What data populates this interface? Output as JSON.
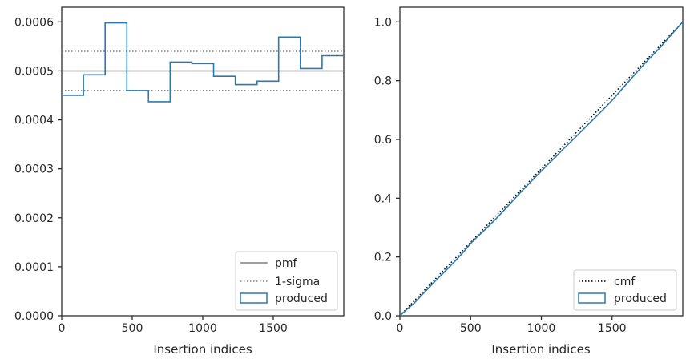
{
  "chart_data": [
    {
      "type": "histogram-step",
      "xlabel": "Insertion indices",
      "ylabel": "",
      "xlim": [
        0,
        2000
      ],
      "ylim": [
        0,
        0.00063
      ],
      "xticks": [
        0,
        500,
        1000,
        1500
      ],
      "xtick_labels": [
        "0",
        "500",
        "1000",
        "1500"
      ],
      "yticks": [
        0,
        0.0001,
        0.0002,
        0.0003,
        0.0004,
        0.0005,
        0.0006
      ],
      "ytick_labels": [
        "0.0000",
        "0.0001",
        "0.0002",
        "0.0003",
        "0.0004",
        "0.0005",
        "0.0006"
      ],
      "hlines": [
        {
          "name": "pmf",
          "y": 0.0005,
          "style": "solid",
          "color": "#808080"
        },
        {
          "name": "1-sigma",
          "y": 0.00054,
          "style": "dotted",
          "color": "#808080"
        },
        {
          "name": "1-sigma",
          "y": 0.00046,
          "style": "dotted",
          "color": "#808080"
        }
      ],
      "series": [
        {
          "name": "produced",
          "color": "#2a7ab0",
          "bin_edges": [
            0,
            154,
            308,
            462,
            615,
            769,
            923,
            1077,
            1231,
            1385,
            1538,
            1692,
            1846,
            2000
          ],
          "values": [
            0.00045,
            0.000492,
            0.000598,
            0.00046,
            0.000437,
            0.000518,
            0.000515,
            0.000489,
            0.000472,
            0.000479,
            0.000569,
            0.000505,
            0.000531
          ]
        }
      ],
      "legend": {
        "position": "bottom-right",
        "entries": [
          {
            "label": "pmf",
            "style": "solid-line",
            "color": "#808080"
          },
          {
            "label": "1-sigma",
            "style": "dotted-line",
            "color": "#808080"
          },
          {
            "label": "produced",
            "style": "patch",
            "color": "#2a7ab0"
          }
        ]
      }
    },
    {
      "type": "line",
      "xlabel": "Insertion indices",
      "ylabel": "",
      "xlim": [
        0,
        2000
      ],
      "ylim": [
        0,
        1.05
      ],
      "xticks": [
        0,
        500,
        1000,
        1500
      ],
      "xtick_labels": [
        "0",
        "500",
        "1000",
        "1500"
      ],
      "yticks": [
        0,
        0.2,
        0.4,
        0.6,
        0.8,
        1.0
      ],
      "ytick_labels": [
        "0.0",
        "0.2",
        "0.4",
        "0.6",
        "0.8",
        "1.0"
      ],
      "series": [
        {
          "name": "cmf",
          "style": "dotted",
          "color": "#000000",
          "x": [
            0,
            2000
          ],
          "y": [
            0,
            1.0
          ]
        },
        {
          "name": "produced",
          "style": "solid",
          "color": "#2a7ab0",
          "x": [
            0,
            50,
            100,
            150,
            200,
            250,
            300,
            350,
            400,
            450,
            500,
            550,
            600,
            650,
            700,
            750,
            800,
            850,
            900,
            950,
            1000,
            1050,
            1100,
            1150,
            1200,
            1250,
            1300,
            1350,
            1400,
            1450,
            1500,
            1550,
            1600,
            1650,
            1700,
            1750,
            1800,
            1850,
            1900,
            1950,
            2000
          ],
          "y": [
            0,
            0.022,
            0.042,
            0.068,
            0.093,
            0.118,
            0.142,
            0.166,
            0.191,
            0.217,
            0.246,
            0.27,
            0.292,
            0.316,
            0.34,
            0.366,
            0.392,
            0.418,
            0.443,
            0.468,
            0.492,
            0.517,
            0.54,
            0.565,
            0.588,
            0.612,
            0.636,
            0.66,
            0.684,
            0.708,
            0.733,
            0.76,
            0.788,
            0.815,
            0.842,
            0.868,
            0.893,
            0.918,
            0.946,
            0.973,
            1.0
          ]
        }
      ],
      "legend": {
        "position": "bottom-right",
        "entries": [
          {
            "label": "cmf",
            "style": "dotted-line",
            "color": "#000000"
          },
          {
            "label": "produced",
            "style": "patch",
            "color": "#2a7ab0"
          }
        ]
      }
    }
  ]
}
